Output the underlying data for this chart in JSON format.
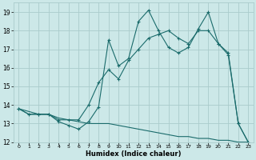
{
  "xlabel": "Humidex (Indice chaleur)",
  "bg_color": "#cce8e8",
  "grid_color": "#aacccc",
  "line_color": "#1a6b6b",
  "line1_x": [
    0,
    1,
    2,
    3,
    4,
    5,
    6,
    7,
    8,
    9,
    10,
    11,
    12,
    13,
    14,
    15,
    16,
    17,
    18,
    19,
    20,
    21,
    22,
    23
  ],
  "line1_y": [
    13.8,
    13.5,
    13.5,
    13.5,
    13.1,
    12.9,
    12.7,
    13.1,
    13.9,
    17.5,
    16.1,
    16.5,
    18.5,
    19.1,
    18.0,
    17.1,
    16.8,
    17.1,
    18.1,
    19.0,
    17.3,
    16.7,
    13.0,
    12.0
  ],
  "line2_x": [
    0,
    2,
    3,
    4,
    5,
    6,
    7,
    8,
    9,
    10,
    11,
    12,
    13,
    14,
    15,
    16,
    17,
    18,
    19,
    20,
    21,
    22,
    23
  ],
  "line2_y": [
    13.8,
    13.5,
    13.5,
    13.2,
    13.2,
    13.2,
    14.0,
    15.2,
    15.9,
    15.4,
    16.4,
    17.0,
    17.6,
    17.8,
    18.0,
    17.6,
    17.3,
    18.0,
    18.0,
    17.3,
    16.8,
    13.0,
    12.0
  ],
  "line3_x": [
    0,
    1,
    2,
    3,
    4,
    5,
    6,
    7,
    8,
    9,
    10,
    11,
    12,
    13,
    14,
    15,
    16,
    17,
    18,
    19,
    20,
    21,
    22,
    23
  ],
  "line3_y": [
    13.8,
    13.5,
    13.5,
    13.5,
    13.3,
    13.2,
    13.1,
    13.0,
    13.0,
    13.0,
    12.9,
    12.8,
    12.7,
    12.6,
    12.5,
    12.4,
    12.3,
    12.3,
    12.2,
    12.2,
    12.1,
    12.1,
    12.0,
    12.0
  ],
  "xlim": [
    -0.5,
    23.5
  ],
  "ylim": [
    12.0,
    19.5
  ],
  "yticks": [
    12,
    13,
    14,
    15,
    16,
    17,
    18,
    19
  ],
  "xticks": [
    0,
    1,
    2,
    3,
    4,
    5,
    6,
    7,
    8,
    9,
    10,
    11,
    12,
    13,
    14,
    15,
    16,
    17,
    18,
    19,
    20,
    21,
    22,
    23
  ]
}
